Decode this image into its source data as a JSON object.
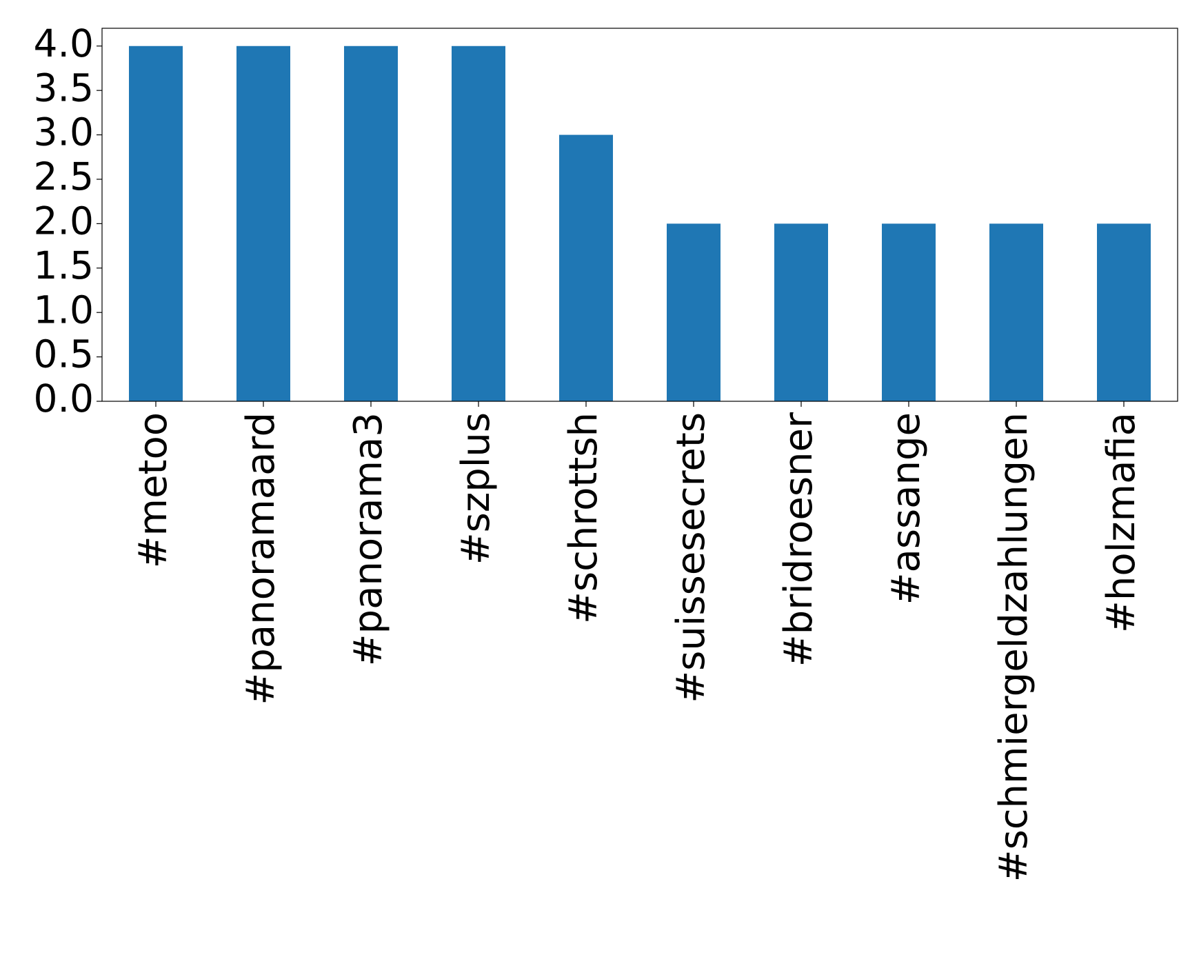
{
  "chart_data": {
    "type": "bar",
    "categories": [
      "#metoo",
      "#panoramaard",
      "#panorama3",
      "#szplus",
      "#schrottsh",
      "#suissesecrets",
      "#bridroesner",
      "#assange",
      "#schmiergeldzahlungen",
      "#holzmafia"
    ],
    "values": [
      4,
      4,
      4,
      4,
      3,
      2,
      2,
      2,
      2,
      2
    ],
    "color": "#1f77b4",
    "ylim": [
      0,
      4.2
    ],
    "yticks": [
      {
        "value": 0,
        "label": "0.0"
      },
      {
        "value": 0.5,
        "label": "0.5"
      },
      {
        "value": 1,
        "label": "1.0"
      },
      {
        "value": 1.5,
        "label": "1.5"
      },
      {
        "value": 2,
        "label": "2.0"
      },
      {
        "value": 2.5,
        "label": "2.5"
      },
      {
        "value": 3,
        "label": "3.0"
      },
      {
        "value": 3.5,
        "label": "3.5"
      },
      {
        "value": 4,
        "label": "4.0"
      }
    ],
    "grid": false
  }
}
